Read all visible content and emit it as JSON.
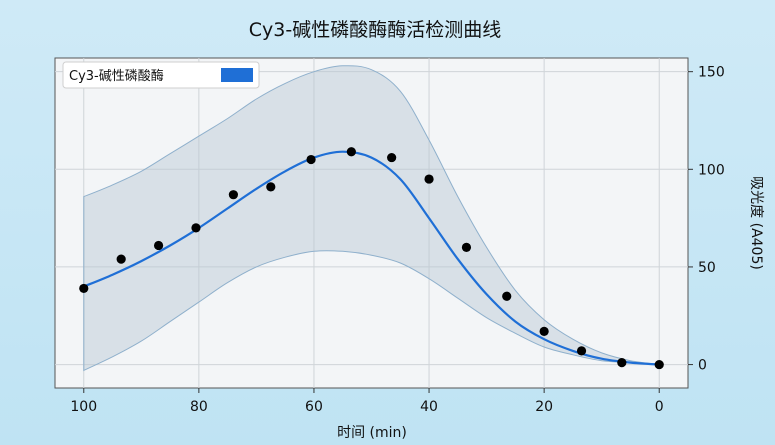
{
  "chart_data": {
    "type": "line",
    "title": "Cy3-碱性磷酸酶酶活检测曲线",
    "xlabel": "时间 (min)",
    "ylabel": "吸光度 (A405)",
    "x_reversed": true,
    "y_axis_side": "right",
    "xlim": [
      -5,
      105
    ],
    "ylim": [
      -12,
      157
    ],
    "xticks": [
      100,
      80,
      60,
      40,
      20,
      0
    ],
    "yticks": [
      0,
      50,
      100,
      150
    ],
    "grid": true,
    "legend_position": "top-left",
    "colors": {
      "line": "#1f6fd6",
      "points": "#000000",
      "band_fill": "#b9c7d2",
      "band_edge": "#8fb0cc",
      "plot_bg": "#f3f5f7"
    },
    "series": [
      {
        "name": "Cy3-碱性磷酸酶",
        "style": "fitted-line",
        "x": [
          100,
          95,
          90,
          85,
          80,
          75,
          70,
          65,
          60,
          55,
          50,
          45,
          40,
          35,
          30,
          25,
          20,
          15,
          10,
          5,
          0
        ],
        "y": [
          40,
          46,
          53,
          61,
          70,
          80,
          90,
          99,
          106,
          109,
          106,
          95,
          75,
          54,
          36,
          22,
          13,
          7,
          3,
          1,
          0
        ],
        "band_lower": [
          -3,
          4,
          12,
          22,
          32,
          42,
          50,
          55,
          58,
          58,
          56,
          52,
          44,
          34,
          24,
          16,
          9,
          5,
          2,
          1,
          0
        ],
        "band_upper": [
          86,
          92,
          99,
          108,
          117,
          126,
          136,
          144,
          150,
          153,
          151,
          140,
          115,
          86,
          60,
          38,
          23,
          13,
          6,
          2,
          0
        ]
      },
      {
        "style": "points",
        "x": [
          100,
          93.5,
          87,
          80.5,
          74,
          67.5,
          60.5,
          53.5,
          46.5,
          40,
          33.5,
          26.5,
          20,
          13.5,
          6.5,
          0
        ],
        "y": [
          39,
          54,
          61,
          70,
          87,
          91,
          105,
          109,
          106,
          95,
          60,
          35,
          17,
          7,
          1,
          0
        ]
      }
    ]
  }
}
